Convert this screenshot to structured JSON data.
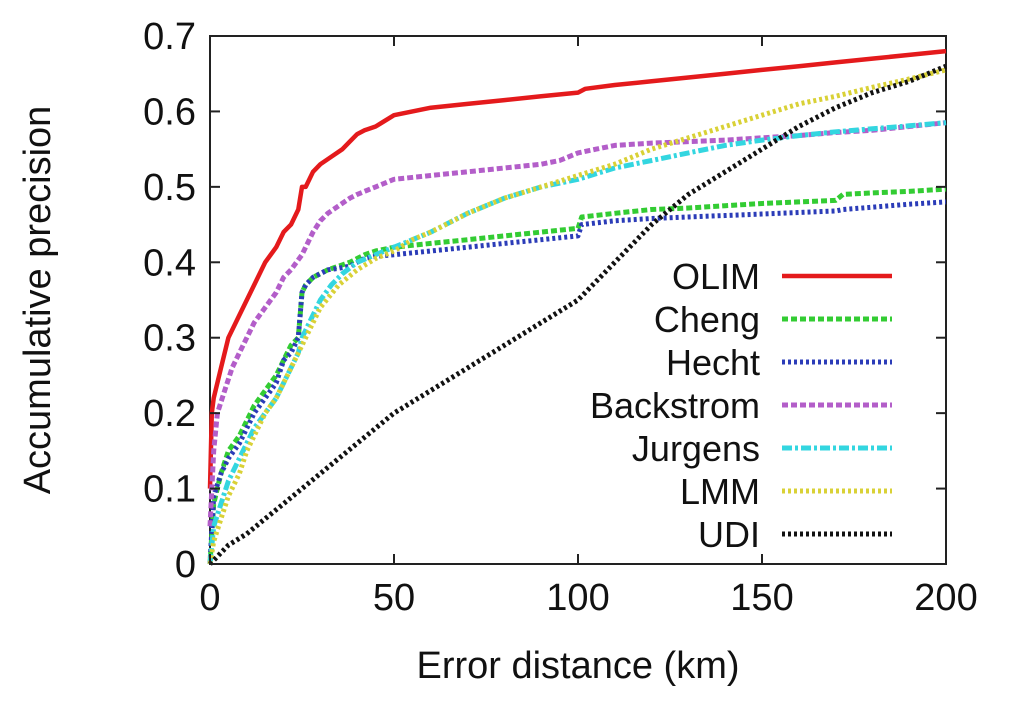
{
  "chart_data": {
    "type": "line",
    "title": "",
    "xlabel": "Error distance (km)",
    "ylabel": "Accumulative precision",
    "xlim": [
      0,
      200
    ],
    "ylim": [
      0,
      0.7
    ],
    "xticks": [
      0,
      50,
      100,
      150,
      200
    ],
    "yticks": [
      0,
      0.1,
      0.2,
      0.3,
      0.4,
      0.5,
      0.6,
      0.7
    ],
    "xtick_labels": [
      "0",
      "50",
      "100",
      "150",
      "200"
    ],
    "ytick_labels": [
      "0",
      "0.1",
      "0.2",
      "0.3",
      "0.4",
      "0.5",
      "0.6",
      "0.7"
    ],
    "grid": false,
    "legend_position": "right",
    "series": [
      {
        "name": "OLIM",
        "color": "#e41a1c",
        "style": "solid",
        "x": [
          0,
          0.5,
          1,
          3,
          5,
          8,
          10,
          12,
          15,
          18,
          20,
          22,
          24,
          25,
          26,
          28,
          30,
          33,
          36,
          38,
          40,
          42,
          45,
          50,
          60,
          70,
          80,
          90,
          100,
          102,
          110,
          120,
          130,
          140,
          150,
          160,
          170,
          180,
          190,
          200
        ],
        "y": [
          0.1,
          0.2,
          0.22,
          0.26,
          0.3,
          0.33,
          0.35,
          0.37,
          0.4,
          0.42,
          0.44,
          0.45,
          0.47,
          0.5,
          0.5,
          0.52,
          0.53,
          0.54,
          0.55,
          0.56,
          0.57,
          0.575,
          0.58,
          0.595,
          0.605,
          0.61,
          0.615,
          0.62,
          0.625,
          0.63,
          0.635,
          0.64,
          0.645,
          0.65,
          0.655,
          0.66,
          0.665,
          0.67,
          0.675,
          0.68
        ]
      },
      {
        "name": "Cheng",
        "color": "#33cc33",
        "style": "dashed",
        "x": [
          0,
          1,
          3,
          5,
          8,
          10,
          12,
          15,
          18,
          20,
          22,
          24,
          25,
          26,
          28,
          30,
          32,
          35,
          38,
          40,
          42,
          45,
          50,
          60,
          70,
          80,
          90,
          100,
          101,
          110,
          120,
          130,
          140,
          150,
          160,
          170,
          172,
          180,
          190,
          200
        ],
        "y": [
          0.0,
          0.08,
          0.12,
          0.15,
          0.17,
          0.19,
          0.21,
          0.23,
          0.25,
          0.27,
          0.29,
          0.3,
          0.36,
          0.37,
          0.38,
          0.385,
          0.39,
          0.395,
          0.4,
          0.405,
          0.41,
          0.415,
          0.42,
          0.425,
          0.43,
          0.435,
          0.44,
          0.445,
          0.46,
          0.465,
          0.47,
          0.472,
          0.475,
          0.478,
          0.48,
          0.482,
          0.49,
          0.492,
          0.494,
          0.497
        ]
      },
      {
        "name": "Hecht",
        "color": "#2b3cb8",
        "style": "dotted",
        "x": [
          0,
          1,
          3,
          5,
          8,
          10,
          12,
          15,
          18,
          20,
          22,
          24,
          25,
          26,
          28,
          30,
          32,
          35,
          38,
          40,
          42,
          45,
          50,
          60,
          70,
          80,
          90,
          100,
          101,
          110,
          120,
          130,
          140,
          150,
          160,
          170,
          172,
          180,
          190,
          200
        ],
        "y": [
          0.0,
          0.09,
          0.12,
          0.14,
          0.16,
          0.18,
          0.2,
          0.22,
          0.24,
          0.27,
          0.28,
          0.3,
          0.36,
          0.37,
          0.38,
          0.385,
          0.39,
          0.392,
          0.395,
          0.4,
          0.405,
          0.408,
          0.41,
          0.415,
          0.42,
          0.425,
          0.43,
          0.435,
          0.45,
          0.455,
          0.458,
          0.46,
          0.462,
          0.464,
          0.466,
          0.468,
          0.47,
          0.473,
          0.477,
          0.48
        ]
      },
      {
        "name": "Backstrom",
        "color": "#b35ec9",
        "style": "dashed",
        "x": [
          0,
          1,
          2,
          4,
          6,
          8,
          10,
          12,
          15,
          18,
          20,
          22,
          25,
          28,
          30,
          32,
          35,
          38,
          40,
          45,
          50,
          60,
          70,
          80,
          90,
          95,
          100,
          105,
          110,
          120,
          130,
          140,
          150,
          160,
          170,
          180,
          190,
          200
        ],
        "y": [
          0.05,
          0.15,
          0.2,
          0.23,
          0.26,
          0.28,
          0.3,
          0.32,
          0.34,
          0.36,
          0.38,
          0.39,
          0.41,
          0.44,
          0.455,
          0.465,
          0.475,
          0.485,
          0.49,
          0.5,
          0.51,
          0.515,
          0.52,
          0.525,
          0.53,
          0.535,
          0.545,
          0.55,
          0.555,
          0.558,
          0.56,
          0.562,
          0.565,
          0.568,
          0.572,
          0.575,
          0.58,
          0.585
        ]
      },
      {
        "name": "Jurgens",
        "color": "#33d6e0",
        "style": "dashdot",
        "x": [
          0,
          1,
          3,
          5,
          8,
          10,
          12,
          15,
          18,
          20,
          22,
          24,
          25,
          26,
          28,
          30,
          33,
          36,
          40,
          45,
          50,
          55,
          60,
          70,
          80,
          90,
          100,
          110,
          120,
          130,
          140,
          150,
          160,
          170,
          180,
          190,
          200
        ],
        "y": [
          0.0,
          0.05,
          0.08,
          0.11,
          0.14,
          0.16,
          0.18,
          0.2,
          0.22,
          0.24,
          0.26,
          0.28,
          0.3,
          0.31,
          0.33,
          0.35,
          0.37,
          0.385,
          0.4,
          0.41,
          0.42,
          0.43,
          0.44,
          0.465,
          0.485,
          0.5,
          0.51,
          0.525,
          0.535,
          0.545,
          0.555,
          0.562,
          0.568,
          0.573,
          0.577,
          0.581,
          0.585
        ]
      },
      {
        "name": "LMM",
        "color": "#d9d136",
        "style": "dotted",
        "x": [
          0,
          1,
          3,
          5,
          8,
          10,
          12,
          15,
          18,
          20,
          22,
          25,
          28,
          30,
          35,
          40,
          45,
          50,
          55,
          60,
          70,
          80,
          90,
          100,
          110,
          120,
          130,
          140,
          150,
          160,
          170,
          180,
          190,
          200
        ],
        "y": [
          0.0,
          0.03,
          0.06,
          0.09,
          0.12,
          0.15,
          0.17,
          0.2,
          0.22,
          0.24,
          0.26,
          0.29,
          0.32,
          0.34,
          0.37,
          0.39,
          0.405,
          0.415,
          0.43,
          0.44,
          0.465,
          0.485,
          0.5,
          0.515,
          0.53,
          0.55,
          0.565,
          0.58,
          0.595,
          0.61,
          0.62,
          0.632,
          0.643,
          0.655
        ]
      },
      {
        "name": "UDI",
        "color": "#111111",
        "style": "dotted",
        "x": [
          0,
          2,
          5,
          10,
          15,
          20,
          25,
          30,
          35,
          40,
          45,
          50,
          60,
          70,
          80,
          90,
          100,
          110,
          120,
          130,
          140,
          150,
          160,
          170,
          180,
          190,
          200
        ],
        "y": [
          0.0,
          0.01,
          0.025,
          0.04,
          0.06,
          0.08,
          0.1,
          0.12,
          0.14,
          0.16,
          0.18,
          0.2,
          0.23,
          0.26,
          0.29,
          0.32,
          0.35,
          0.4,
          0.45,
          0.49,
          0.52,
          0.55,
          0.58,
          0.605,
          0.625,
          0.64,
          0.66
        ]
      }
    ]
  }
}
